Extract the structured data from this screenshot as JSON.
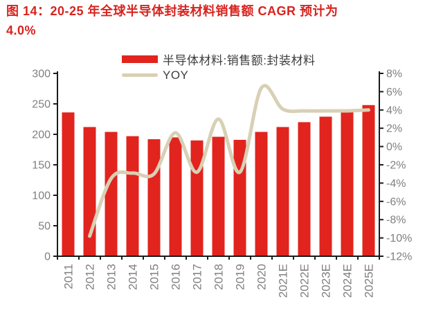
{
  "title": {
    "line1": "图 14：20-25 年全球半导体封装材料销售额 CAGR 预计为",
    "line2": "4.0%"
  },
  "legend": {
    "bar_label": "半导体材料:销售额:封装材料",
    "line_label": "YOY"
  },
  "colors": {
    "title": "#d8231e",
    "bar": "#e2241e",
    "line": "#d8d0b5",
    "axis": "#1a1a1a",
    "tick_label": "#7f7f7f",
    "legend_text": "#3d3d3d"
  },
  "chart_data": {
    "type": "bar",
    "title": "图 14：20-25 年全球半导体封装材料销售额 CAGR 预计为 4.0%",
    "xlabel": "",
    "ylabel": "",
    "grid": false,
    "legend_position": "top-center",
    "categories": [
      "2011",
      "2012",
      "2013",
      "2014",
      "2015",
      "2016",
      "2017",
      "2018",
      "2019",
      "2020",
      "2021E",
      "2022E",
      "2023E",
      "2024E",
      "2025E"
    ],
    "series": [
      {
        "name": "半导体材料:销售额:封装材料",
        "type": "bar",
        "axis": "left",
        "values": [
          236,
          212,
          204,
          197,
          192,
          195,
          190,
          196,
          191,
          204,
          212,
          220,
          229,
          238,
          248
        ]
      },
      {
        "name": "YOY",
        "type": "line",
        "axis": "right",
        "values": [
          null,
          -9.8,
          -3.5,
          -2.9,
          -3.0,
          1.5,
          -2.8,
          3.0,
          -2.8,
          6.4,
          4.1,
          3.9,
          3.9,
          3.9,
          4.0
        ]
      }
    ],
    "left_axis": {
      "min": 0,
      "max": 300,
      "step": 50,
      "ticks": [
        "0",
        "50",
        "100",
        "150",
        "200",
        "250",
        "300"
      ]
    },
    "right_axis": {
      "min": -12,
      "max": 8,
      "step": 2,
      "ticks": [
        "8%",
        "6%",
        "4%",
        "2%",
        "0%",
        "-2%",
        "-4%",
        "-6%",
        "-8%",
        "-10%",
        "-12%"
      ]
    }
  }
}
